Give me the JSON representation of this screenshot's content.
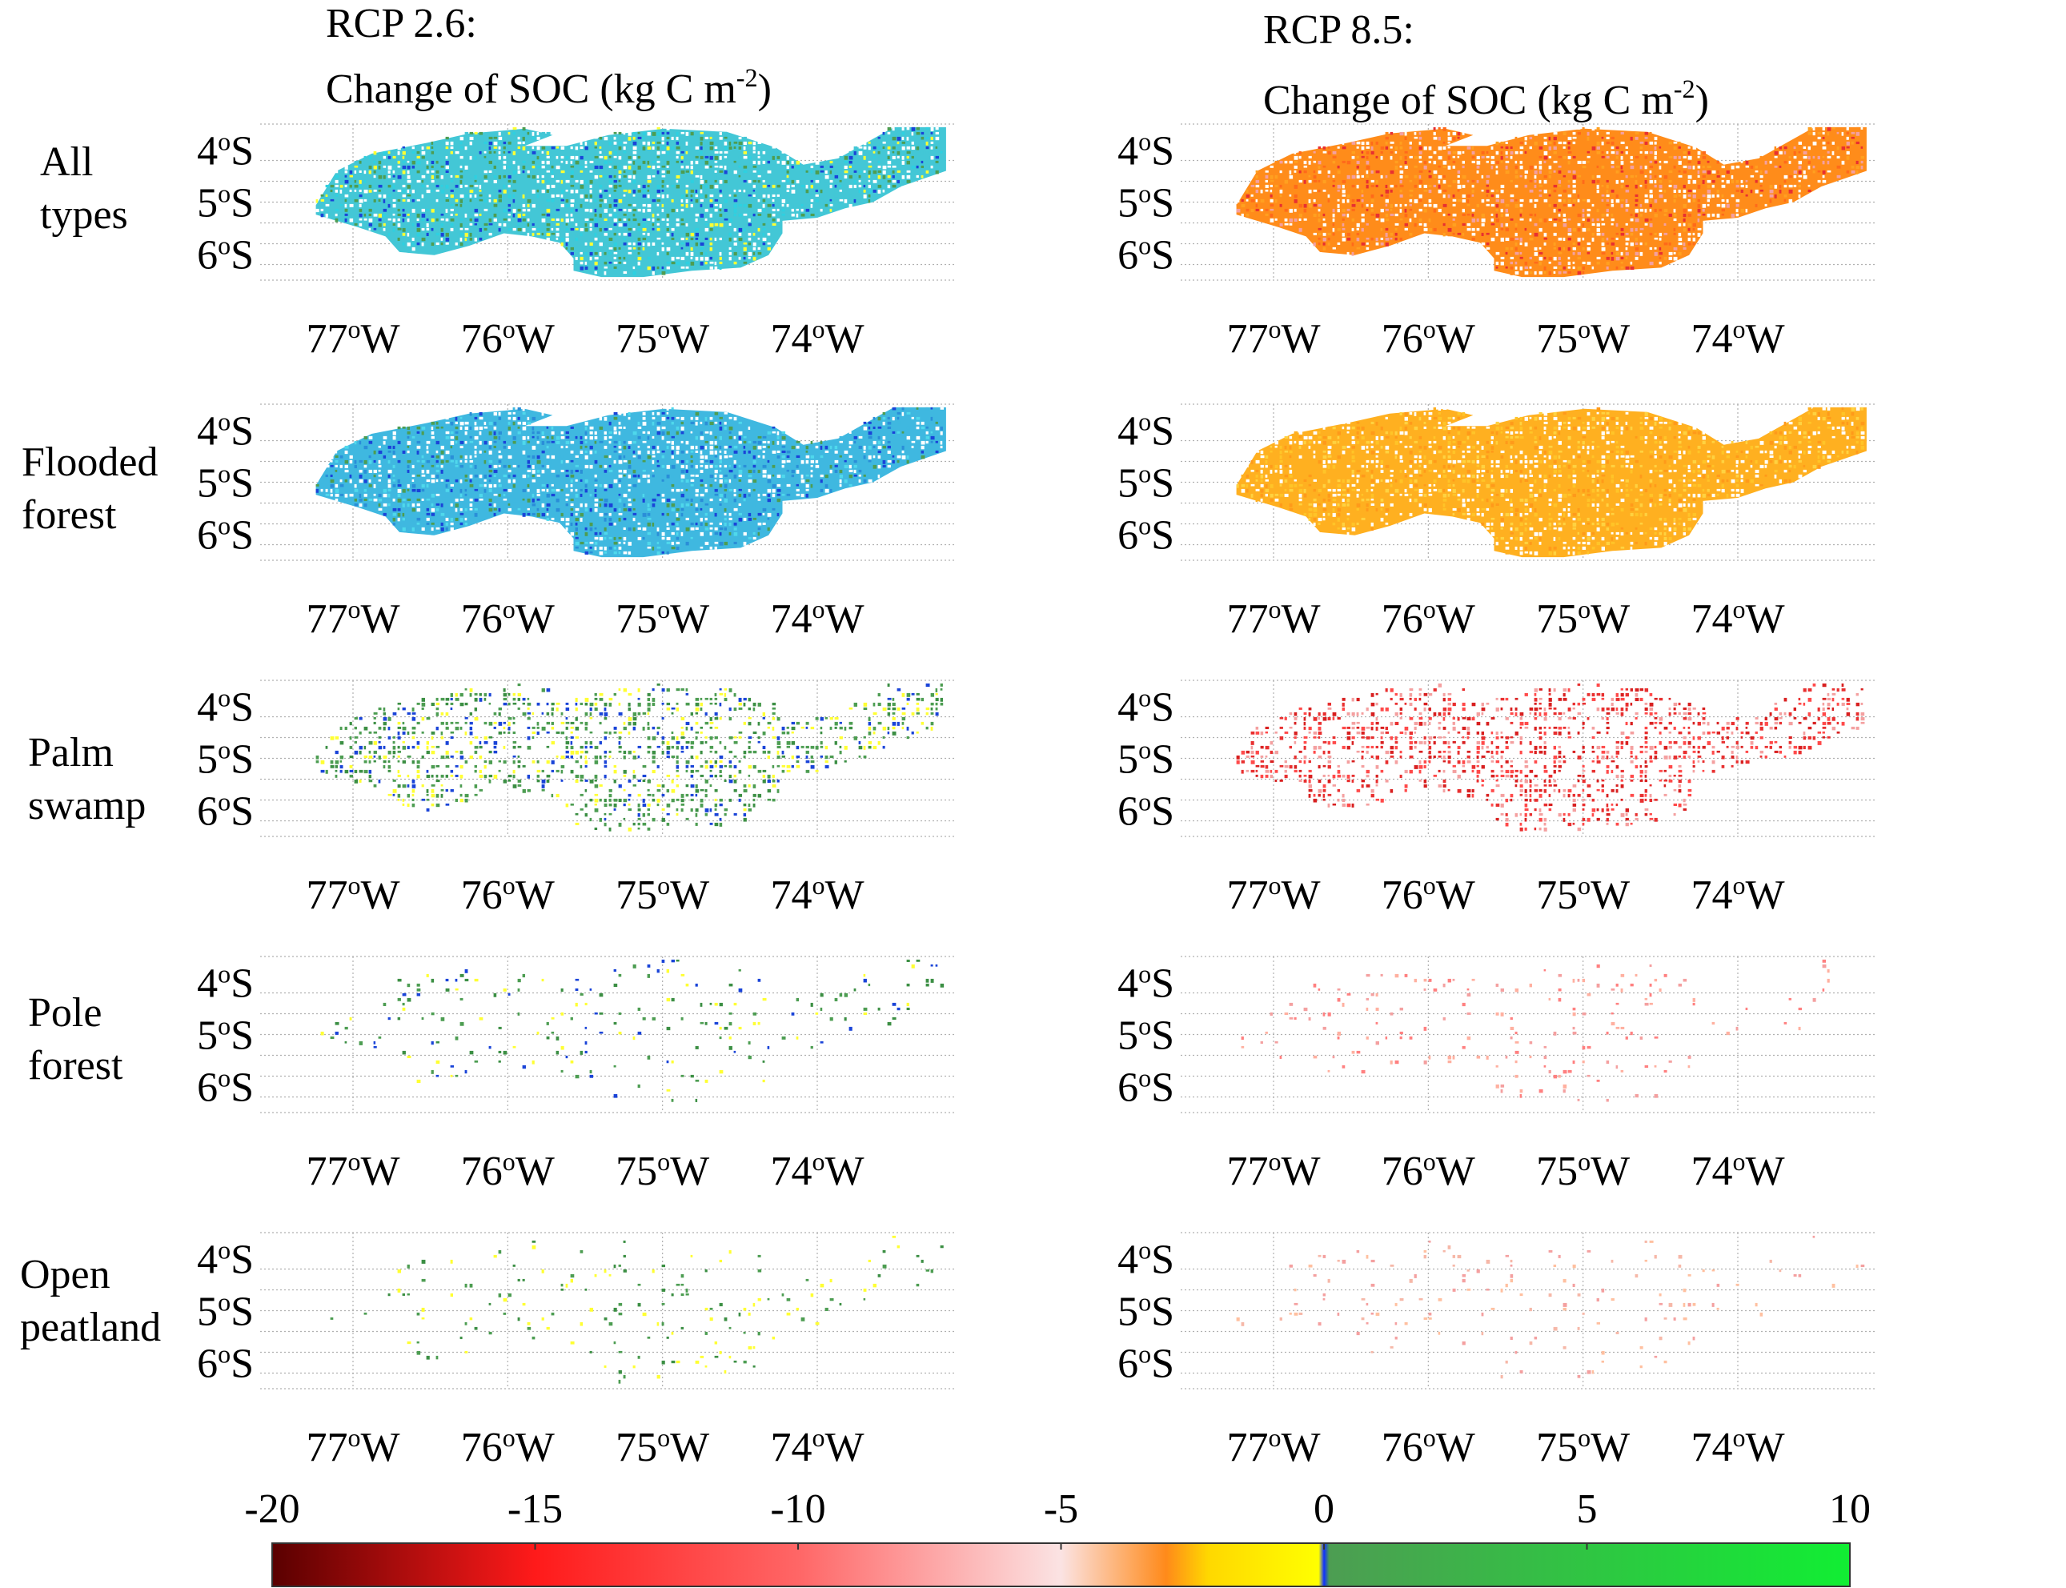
{
  "titles": {
    "left_line1": "RCP 2.6:",
    "left_line2_pre": "Change of SOC (kg C m",
    "left_line2_sup": "-2",
    "left_line2_post": ")",
    "right_line1": "RCP 8.5:",
    "right_line2_pre": "Change of SOC (kg C m",
    "right_line2_sup": "-2",
    "right_line2_post": ")"
  },
  "rows": [
    {
      "line1": "All",
      "line2": "types"
    },
    {
      "line1": "Flooded",
      "line2": "forest"
    },
    {
      "line1": "Palm",
      "line2": "swamp"
    },
    {
      "line1": "Pole",
      "line2": "forest"
    },
    {
      "line1": "Open",
      "line2": "peatland"
    }
  ],
  "chart_data": {
    "type": "heatmap",
    "description_note": "",
    "scenarios": [
      "RCP 2.6",
      "RCP 8.5"
    ],
    "peat_types": [
      "All types",
      "Flooded forest",
      "Palm swamp",
      "Pole forest",
      "Open peatland"
    ],
    "lat_ticks": [
      {
        "value": -4,
        "num": "4",
        "deg": "o",
        "hem": "S"
      },
      {
        "value": -5,
        "num": "5",
        "deg": "o",
        "hem": "S"
      },
      {
        "value": -6,
        "num": "6",
        "deg": "o",
        "hem": "S"
      }
    ],
    "lon_ticks": [
      {
        "value": -77,
        "num": "77",
        "deg": "o",
        "hem": "W"
      },
      {
        "value": -76,
        "num": "76",
        "deg": "o",
        "hem": "W"
      },
      {
        "value": -75,
        "num": "75",
        "deg": "o",
        "hem": "W"
      },
      {
        "value": -74,
        "num": "74",
        "deg": "o",
        "hem": "W"
      }
    ],
    "lon_range": [
      -77.6,
      -73.1
    ],
    "lat_range": [
      -6.5,
      -3.5
    ],
    "panel_dominant_colors": {
      "RCP 2.6": [
        "#43c7d6",
        "#3fb8e0",
        "#4d9d52",
        "#4d9d52",
        "#4d9d52"
      ],
      "RCP 8.5": [
        "#ff8c1a",
        "#ffb020",
        "#e83030",
        "#f4a0a0",
        "#f6b8a8"
      ]
    },
    "colorbar": {
      "ticks": [
        -20,
        -15,
        -10,
        -5,
        0,
        5,
        10
      ],
      "tick_labels": [
        "-20",
        "-15",
        "-10",
        "-5",
        "0",
        "5",
        "10"
      ],
      "range": [
        -20,
        10
      ],
      "stops": [
        {
          "value": -20,
          "color": "#5a0000"
        },
        {
          "value": -15,
          "color": "#ff1a1a"
        },
        {
          "value": -10,
          "color": "#ff6666"
        },
        {
          "value": -5,
          "color": "#fbe3e3"
        },
        {
          "value": -3,
          "color": "#ff8a1a"
        },
        {
          "value": -2.2,
          "color": "#ffd800"
        },
        {
          "value": -0.1,
          "color": "#ffff00"
        },
        {
          "value": 0,
          "color": "#1030ff"
        },
        {
          "value": 0.1,
          "color": "#4d9d52"
        },
        {
          "value": 10,
          "color": "#11ee33"
        }
      ]
    }
  }
}
